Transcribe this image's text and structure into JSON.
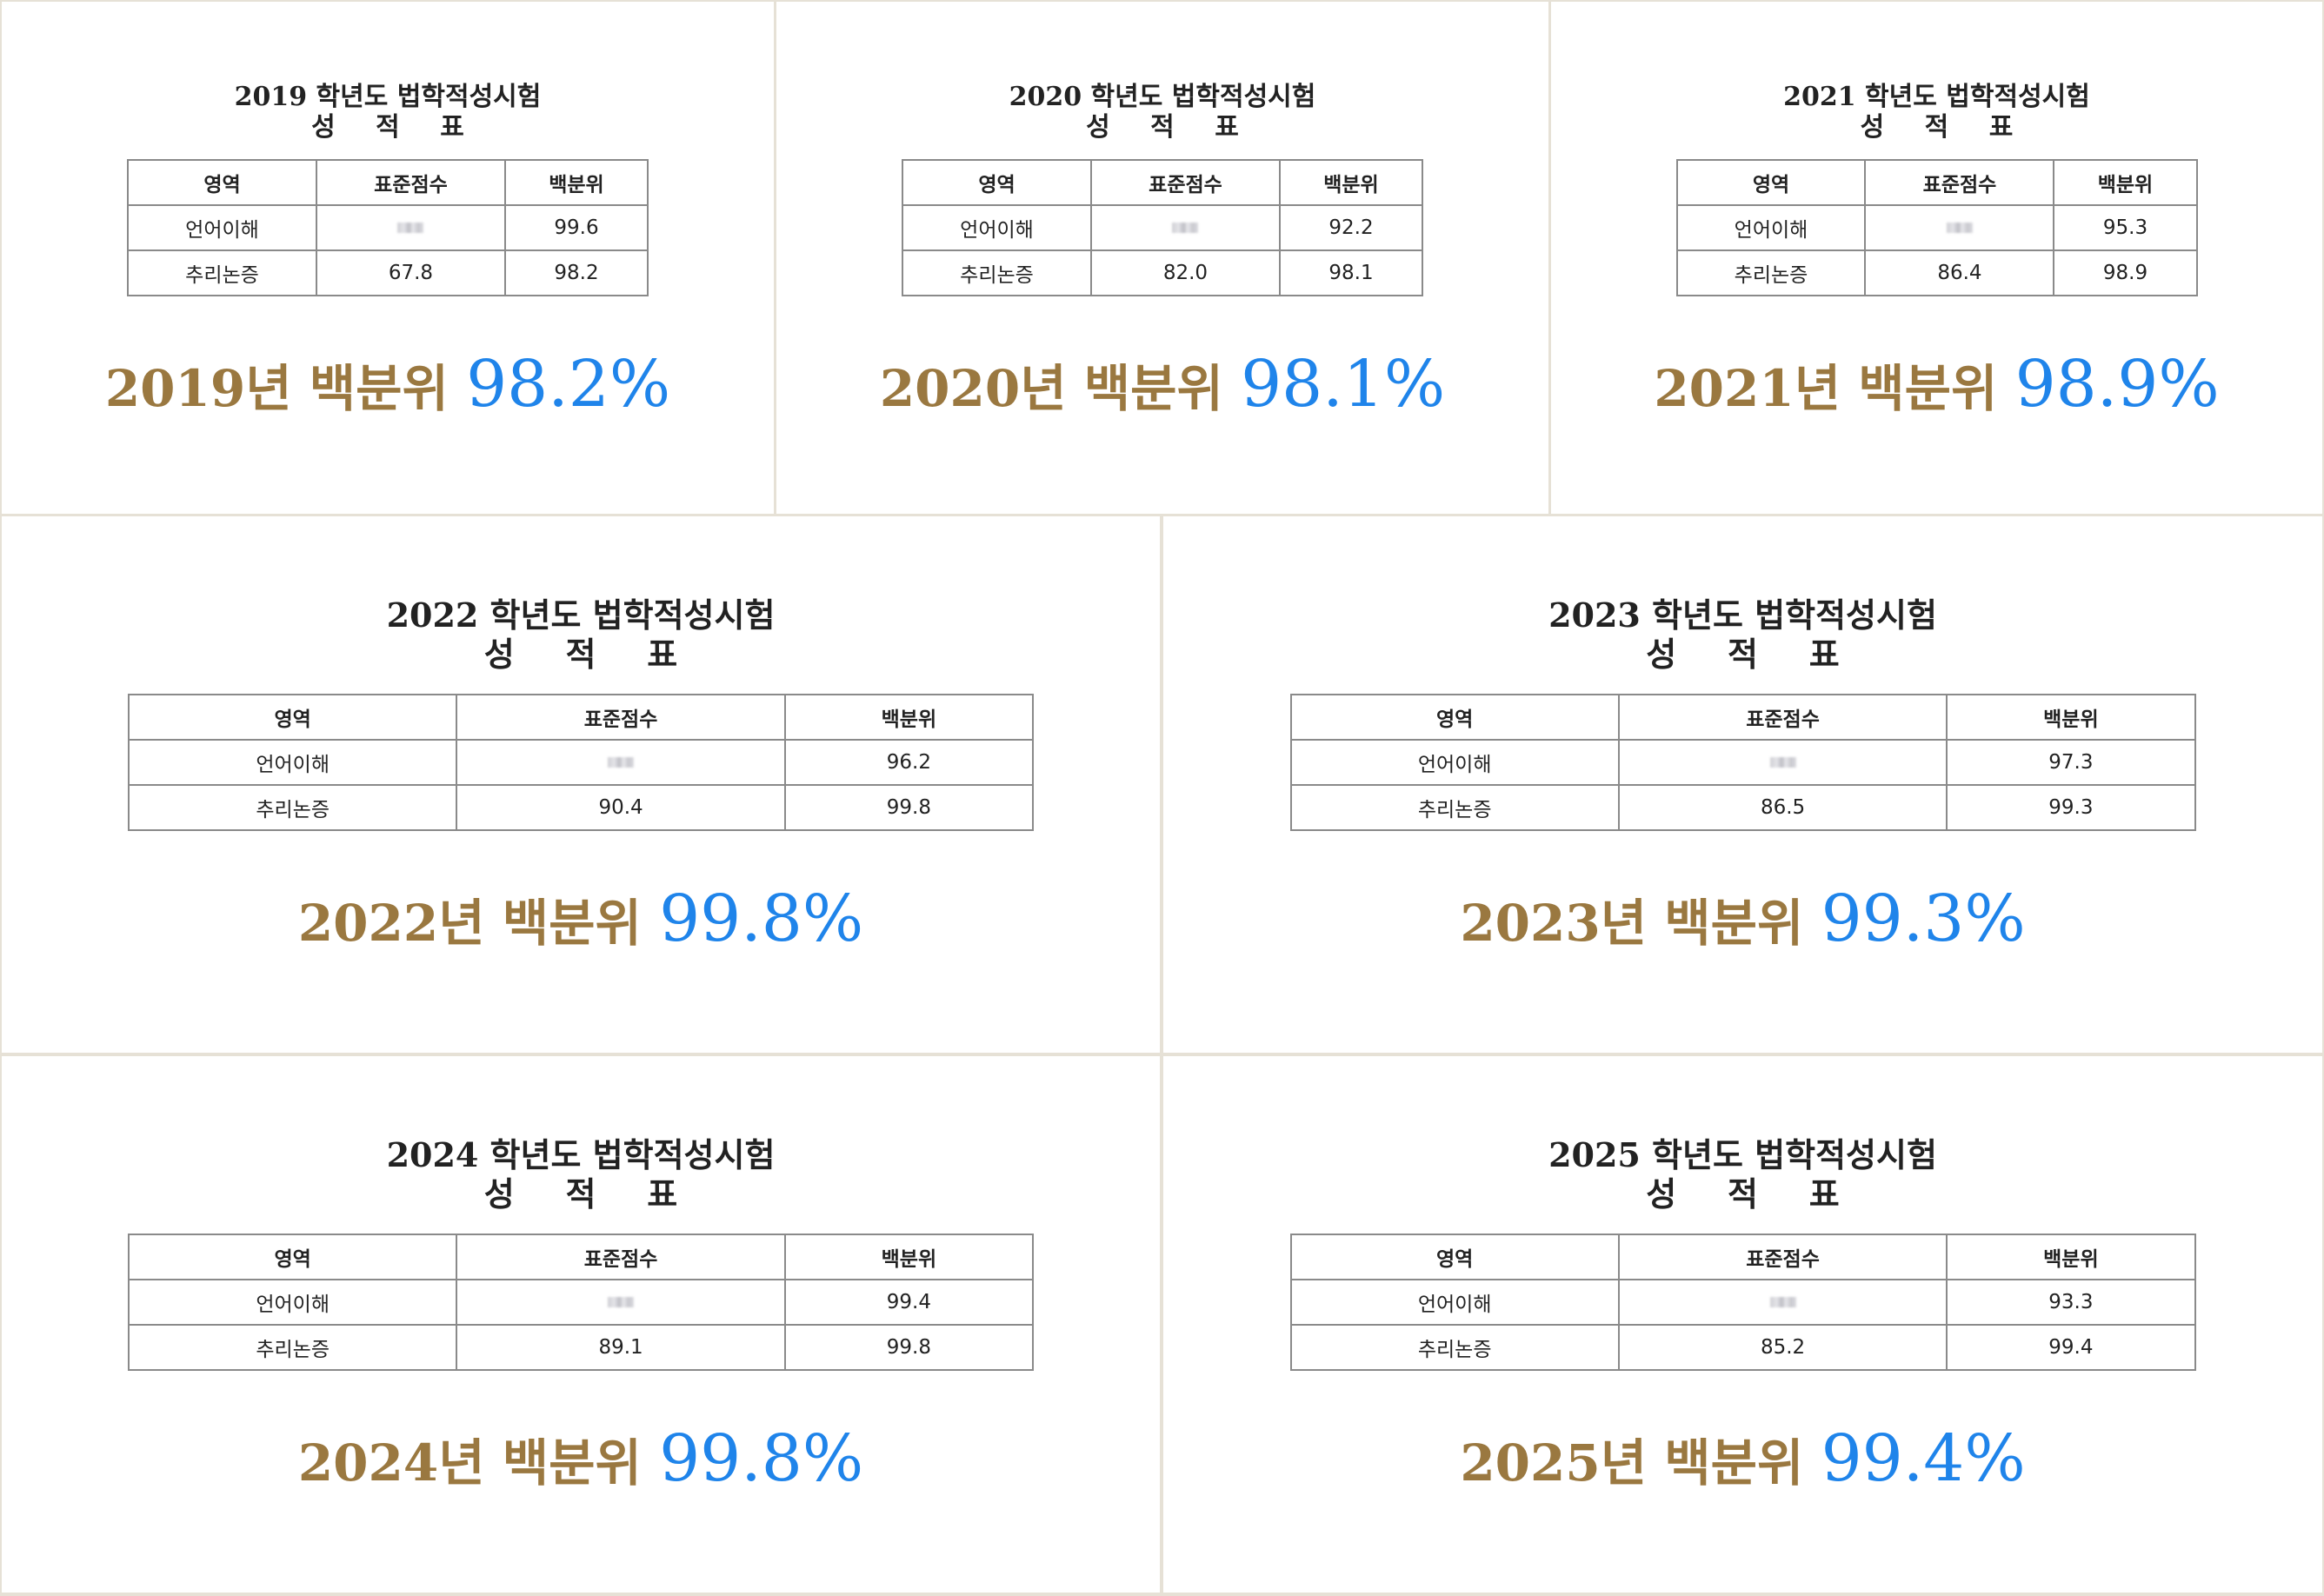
{
  "sheets": [
    {
      "title": "2019 학년도 법학적성시험",
      "subtitle": "성 적 표",
      "headers": [
        "영역",
        "표준점수",
        "백분위"
      ],
      "rows": [
        {
          "area": "언어이해",
          "standard": "",
          "percentile": "99.6"
        },
        {
          "area": "추리논증",
          "standard": "67.8",
          "percentile": "98.2"
        }
      ],
      "headline_prefix": "2019년 백분위",
      "headline_value": "98.2%"
    },
    {
      "title": "2020 학년도 법학적성시험",
      "subtitle": "성 적 표",
      "headers": [
        "영역",
        "표준점수",
        "백분위"
      ],
      "rows": [
        {
          "area": "언어이해",
          "standard": "",
          "percentile": "92.2"
        },
        {
          "area": "추리논증",
          "standard": "82.0",
          "percentile": "98.1"
        }
      ],
      "headline_prefix": "2020년 백분위",
      "headline_value": "98.1%"
    },
    {
      "title": "2021 학년도 법학적성시험",
      "subtitle": "성 적 표",
      "headers": [
        "영역",
        "표준점수",
        "백분위"
      ],
      "rows": [
        {
          "area": "언어이해",
          "standard": "",
          "percentile": "95.3"
        },
        {
          "area": "추리논증",
          "standard": "86.4",
          "percentile": "98.9"
        }
      ],
      "headline_prefix": "2021년 백분위",
      "headline_value": "98.9%"
    },
    {
      "title": "2022 학년도 법학적성시험",
      "subtitle": "성 적 표",
      "headers": [
        "영역",
        "표준점수",
        "백분위"
      ],
      "rows": [
        {
          "area": "언어이해",
          "standard": "",
          "percentile": "96.2"
        },
        {
          "area": "추리논증",
          "standard": "90.4",
          "percentile": "99.8"
        }
      ],
      "headline_prefix": "2022년 백분위",
      "headline_value": "99.8%"
    },
    {
      "title": "2023 학년도 법학적성시험",
      "subtitle": "성 적 표",
      "headers": [
        "영역",
        "표준점수",
        "백분위"
      ],
      "rows": [
        {
          "area": "언어이해",
          "standard": "",
          "percentile": "97.3"
        },
        {
          "area": "추리논증",
          "standard": "86.5",
          "percentile": "99.3"
        }
      ],
      "headline_prefix": "2023년 백분위",
      "headline_value": "99.3%"
    },
    {
      "title": "2024 학년도 법학적성시험",
      "subtitle": "성 적 표",
      "headers": [
        "영역",
        "표준점수",
        "백분위"
      ],
      "rows": [
        {
          "area": "언어이해",
          "standard": "",
          "percentile": "99.4"
        },
        {
          "area": "추리논증",
          "standard": "89.1",
          "percentile": "99.8"
        }
      ],
      "headline_prefix": "2024년 백분위",
      "headline_value": "99.8%"
    },
    {
      "title": "2025 학년도 법학적성시험",
      "subtitle": "성 적 표",
      "headers": [
        "영역",
        "표준점수",
        "백분위"
      ],
      "rows": [
        {
          "area": "언어이해",
          "standard": "",
          "percentile": "93.3"
        },
        {
          "area": "추리논증",
          "standard": "85.2",
          "percentile": "99.4"
        }
      ],
      "headline_prefix": "2025년 백분위",
      "headline_value": "99.4%"
    }
  ],
  "colors": {
    "headline_gold": "#9a7840",
    "percent_blue": "#1f84ea",
    "divider": "#e6e1d6"
  }
}
